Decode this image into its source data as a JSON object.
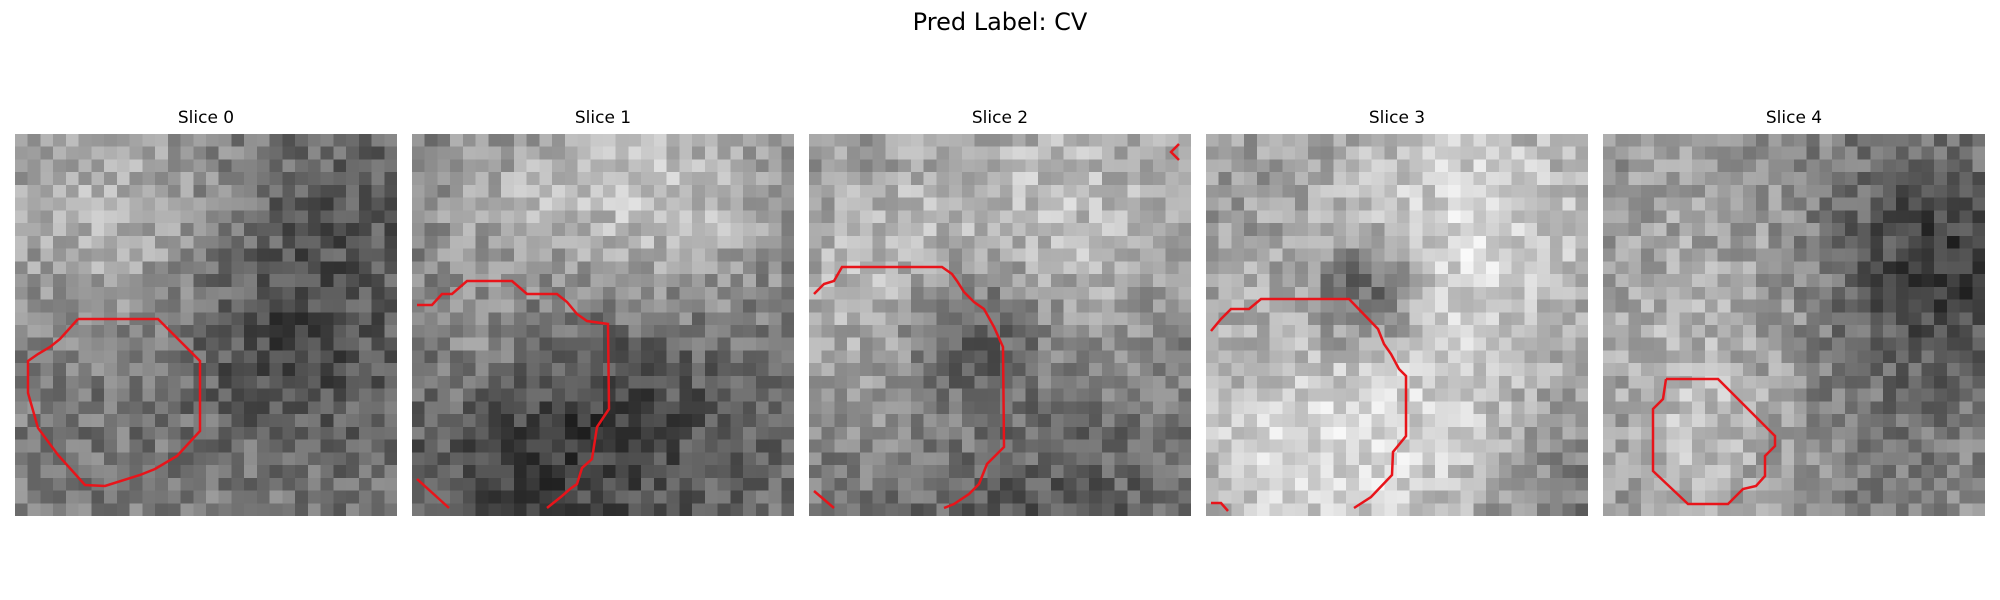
{
  "figure": {
    "title": "Pred Label: CV",
    "contour_color": "#e8141a",
    "panels": [
      {
        "label": "Slice 0"
      },
      {
        "label": "Slice 1"
      },
      {
        "label": "Slice 2"
      },
      {
        "label": "Slice 3"
      },
      {
        "label": "Slice 4"
      }
    ]
  }
}
